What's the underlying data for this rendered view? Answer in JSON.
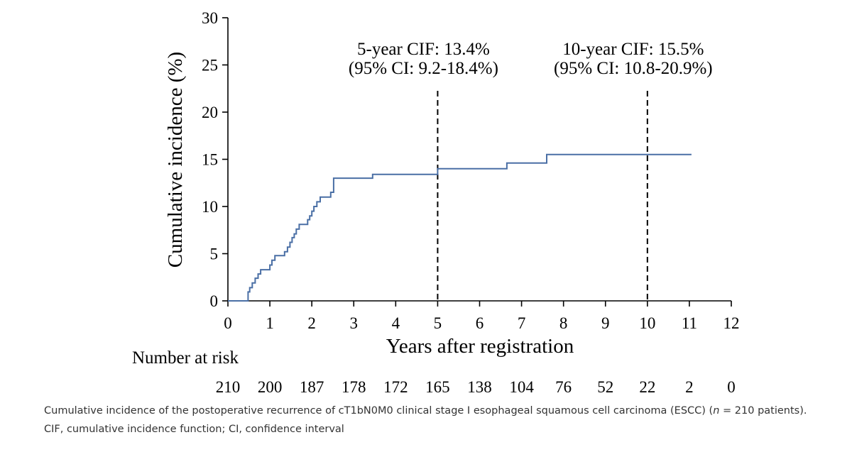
{
  "chart_data": {
    "type": "step",
    "title": "",
    "xlabel": "Years after registration",
    "ylabel": "Cumulative incidence (%)",
    "xlim": [
      0,
      12
    ],
    "ylim": [
      0,
      30
    ],
    "xticks": [
      0,
      1,
      2,
      3,
      4,
      5,
      6,
      7,
      8,
      9,
      10,
      11,
      12
    ],
    "yticks": [
      0,
      5,
      10,
      15,
      20,
      25,
      30
    ],
    "grid": false,
    "series": [
      {
        "name": "Cumulative incidence",
        "color": "#4a6fa5",
        "x": [
          0,
          0.48,
          0.48,
          0.52,
          0.58,
          0.65,
          0.72,
          0.78,
          1.0,
          1.05,
          1.12,
          1.35,
          1.42,
          1.48,
          1.53,
          1.58,
          1.63,
          1.7,
          1.75,
          1.9,
          1.95,
          2.0,
          2.05,
          2.12,
          2.2,
          2.3,
          2.45,
          2.52,
          3.45,
          5.0,
          6.65,
          7.6,
          11.05
        ],
        "y": [
          0,
          0,
          0.95,
          1.4,
          1.9,
          2.4,
          2.85,
          3.3,
          3.8,
          4.3,
          4.8,
          5.2,
          5.7,
          6.2,
          6.7,
          7.1,
          7.6,
          8.1,
          8.1,
          8.6,
          9.0,
          9.5,
          10.0,
          10.5,
          11.0,
          11.0,
          11.5,
          13.0,
          13.4,
          14.0,
          14.6,
          15.5,
          15.5
        ]
      }
    ],
    "reference_lines": [
      {
        "x": 5,
        "label_line1": "5-year CIF: 13.4%",
        "label_line2": "(95% CI: 9.2-18.4%)"
      },
      {
        "x": 10,
        "label_line1": "10-year CIF: 15.5%",
        "label_line2": "(95% CI: 10.8-20.9%)"
      }
    ],
    "risk_table": {
      "title": "Number at risk",
      "values": [
        210,
        200,
        187,
        178,
        172,
        165,
        138,
        104,
        76,
        52,
        22,
        2,
        0
      ]
    }
  },
  "caption": {
    "part1": "Cumulative incidence of the postoperative recurrence of cT1bN0M0 clinical stage I esophageal squamous cell carcinoma (ESCC) (",
    "n_symbol": "n",
    "part2": " = 210 patients). CIF, cumulative incidence function; CI, confidence interval"
  }
}
